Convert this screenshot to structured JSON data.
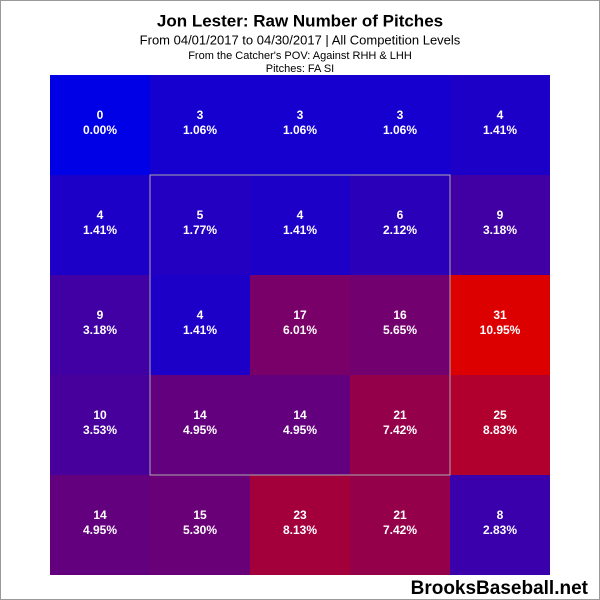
{
  "chart_data": {
    "type": "heatmap",
    "title": "Jon Lester: Raw Number of Pitches",
    "subtitle": "From 04/01/2017 to 04/30/2017 | All Competition Levels",
    "notes": [
      "From the Catcher's POV:  Against RHH & LHH",
      "Pitches:  FA  SI"
    ],
    "watermark": "BrooksBaseball.net",
    "low_color": "#0000e6",
    "high_color": "#dc0000",
    "values": [
      [
        0,
        3,
        3,
        3,
        4
      ],
      [
        4,
        5,
        4,
        6,
        9
      ],
      [
        9,
        4,
        17,
        16,
        31
      ],
      [
        10,
        14,
        14,
        21,
        25
      ],
      [
        14,
        15,
        23,
        21,
        8
      ]
    ],
    "percent_labels": [
      [
        "0.00%",
        "1.06%",
        "1.06%",
        "1.06%",
        "1.41%"
      ],
      [
        "1.41%",
        "1.77%",
        "1.41%",
        "2.12%",
        "3.18%"
      ],
      [
        "3.18%",
        "1.41%",
        "6.01%",
        "5.65%",
        "10.95%"
      ],
      [
        "3.53%",
        "4.95%",
        "4.95%",
        "7.42%",
        "8.83%"
      ],
      [
        "4.95%",
        "5.30%",
        "8.13%",
        "7.42%",
        "2.83%"
      ]
    ]
  }
}
